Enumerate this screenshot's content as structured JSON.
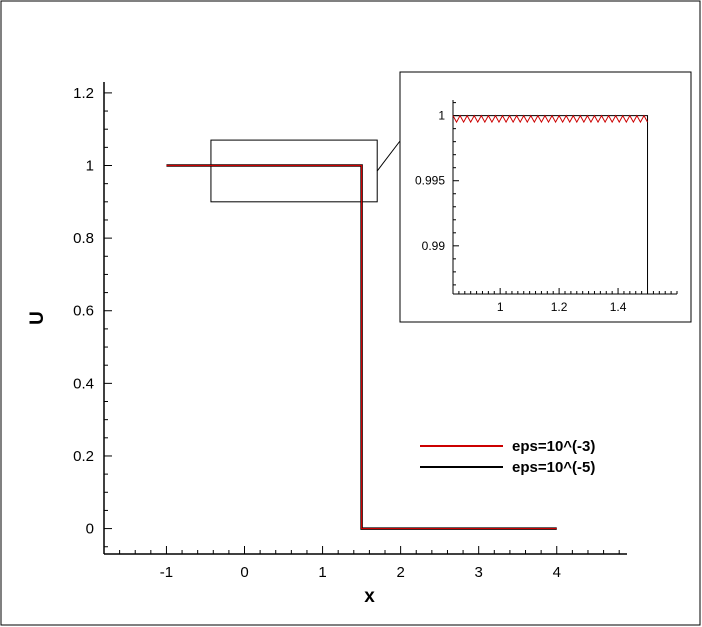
{
  "chart_data": [
    {
      "id": "main",
      "type": "line",
      "xlabel": "x",
      "ylabel": "U",
      "xlim": [
        -1.8,
        4.9
      ],
      "ylim": [
        -0.07,
        1.23
      ],
      "x_ticks": [
        -1,
        0,
        1,
        2,
        3,
        4
      ],
      "x_tick_labels": [
        "-1",
        "0",
        "1",
        "2",
        "3",
        "4"
      ],
      "y_ticks": [
        0,
        0.2,
        0.4,
        0.6,
        0.8,
        1
      ],
      "y_tick_labels": [
        "0",
        "0.2",
        "0.4",
        "0.6",
        "0.8",
        "1"
      ],
      "y_extra_tick": 1.2,
      "y_extra_tick_label": "1.2",
      "grid": false,
      "legend_position": "lower-right",
      "zoom_box": {
        "x": [
          -0.43,
          1.7
        ],
        "y": [
          0.9,
          1.07
        ]
      },
      "series": [
        {
          "name": "eps=10^(-3)",
          "color": "#cc0000",
          "x": [
            -1,
            1.5,
            1.5,
            4
          ],
          "y": [
            1,
            1,
            0,
            0
          ]
        },
        {
          "name": "eps=10^(-5)",
          "color": "#000000",
          "x": [
            -1,
            1.5,
            1.5,
            4
          ],
          "y": [
            1,
            1,
            0,
            0
          ]
        }
      ]
    },
    {
      "id": "inset",
      "type": "line",
      "xlim": [
        0.84,
        1.6
      ],
      "ylim": [
        0.9863,
        1.0012
      ],
      "x_ticks": [
        1,
        1.2,
        1.4
      ],
      "x_tick_labels": [
        "1",
        "1.2",
        "1.4"
      ],
      "y_ticks": [
        0.99,
        0.995,
        1
      ],
      "y_tick_labels": [
        "0.99",
        "0.995",
        "1"
      ],
      "grid": false,
      "series": [
        {
          "name": "eps=10^(-3)",
          "color": "#cc0000",
          "x_range": [
            0.84,
            1.5
          ],
          "y_high": 1.0,
          "y_low": 0.9995,
          "oscillation_period": 0.024
        },
        {
          "name": "eps=10^(-5)",
          "color": "#000000",
          "x": [
            0.84,
            1.5,
            1.5
          ],
          "y": [
            1.0,
            1.0,
            0.9863
          ]
        }
      ]
    }
  ]
}
